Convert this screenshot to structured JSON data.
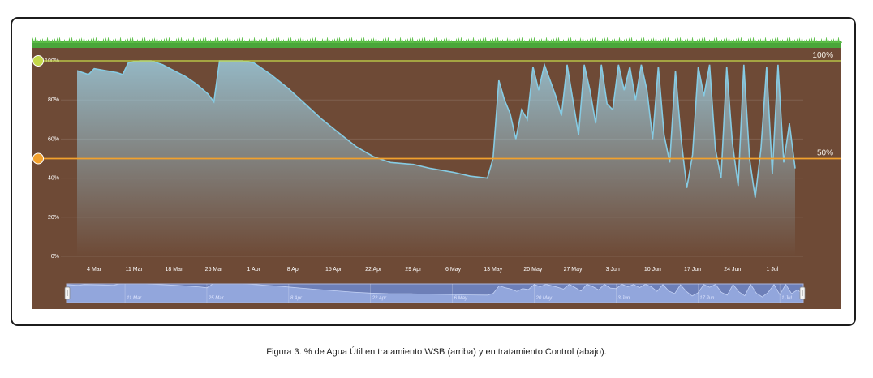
{
  "caption": "Figura 3. % de Agua Útil en tratamiento WSB (arriba) y en tratamiento Control (abajo).",
  "colors": {
    "soil": "#6e4a36",
    "grass": "#4aa63a",
    "series_line": "#86cbe3",
    "upper_line": "#c5d94a",
    "lower_line": "#f2a12d",
    "navigator_bg": "#6d7fb8",
    "navigator_fill": "#9fb3e8"
  },
  "icons": {
    "upper_handle": "circle-handle-icon",
    "lower_handle": "circle-handle-icon",
    "nav_left": "grip-handle-icon",
    "nav_right": "grip-handle-icon"
  },
  "chart_data": {
    "type": "area",
    "title": "",
    "xlabel": "",
    "ylabel": "",
    "ylim": [
      0,
      100
    ],
    "grid": true,
    "y_ticks": [
      "0%",
      "20%",
      "40%",
      "60%",
      "80%",
      "100%"
    ],
    "x_range": [
      "2017-03-01",
      "2017-07-05"
    ],
    "x_ticks": [
      {
        "date": "2017-03-04",
        "label": "4 Mar"
      },
      {
        "date": "2017-03-11",
        "label": "11 Mar"
      },
      {
        "date": "2017-03-18",
        "label": "18 Mar"
      },
      {
        "date": "2017-03-25",
        "label": "25 Mar"
      },
      {
        "date": "2017-04-01",
        "label": "1 Apr"
      },
      {
        "date": "2017-04-08",
        "label": "8 Apr"
      },
      {
        "date": "2017-04-15",
        "label": "15 Apr"
      },
      {
        "date": "2017-04-22",
        "label": "22 Apr"
      },
      {
        "date": "2017-04-29",
        "label": "29 Apr"
      },
      {
        "date": "2017-05-06",
        "label": "6 May"
      },
      {
        "date": "2017-05-13",
        "label": "13 May"
      },
      {
        "date": "2017-05-20",
        "label": "20 May"
      },
      {
        "date": "2017-05-27",
        "label": "27 May"
      },
      {
        "date": "2017-06-03",
        "label": "3 Jun"
      },
      {
        "date": "2017-06-10",
        "label": "10 Jun"
      },
      {
        "date": "2017-06-17",
        "label": "17 Jun"
      },
      {
        "date": "2017-06-24",
        "label": "24 Jun"
      },
      {
        "date": "2017-07-01",
        "label": "1 Jul"
      }
    ],
    "reference_lines": [
      {
        "value": 100,
        "label": "100%"
      },
      {
        "value": 50,
        "label": "50%"
      }
    ],
    "navigator_labels": [
      "11 Mar",
      "25 Mar",
      "8 Apr",
      "22 Apr",
      "6 May",
      "20 May",
      "3 Jun",
      "17 Jun",
      "1 Jul"
    ],
    "series": [
      {
        "points": [
          [
            "2017-03-01",
            95
          ],
          [
            "2017-03-03",
            93
          ],
          [
            "2017-03-04",
            96
          ],
          [
            "2017-03-06",
            95
          ],
          [
            "2017-03-08",
            94
          ],
          [
            "2017-03-09",
            93
          ],
          [
            "2017-03-10",
            99
          ],
          [
            "2017-03-12",
            100
          ],
          [
            "2017-03-14",
            100
          ],
          [
            "2017-03-16",
            98
          ],
          [
            "2017-03-18",
            95
          ],
          [
            "2017-03-20",
            92
          ],
          [
            "2017-03-22",
            88
          ],
          [
            "2017-03-24",
            83
          ],
          [
            "2017-03-25",
            79
          ],
          [
            "2017-03-26",
            100
          ],
          [
            "2017-03-30",
            100
          ],
          [
            "2017-04-01",
            99
          ],
          [
            "2017-04-04",
            93
          ],
          [
            "2017-04-07",
            86
          ],
          [
            "2017-04-10",
            78
          ],
          [
            "2017-04-13",
            70
          ],
          [
            "2017-04-16",
            63
          ],
          [
            "2017-04-19",
            56
          ],
          [
            "2017-04-22",
            51
          ],
          [
            "2017-04-25",
            48
          ],
          [
            "2017-04-29",
            47
          ],
          [
            "2017-05-02",
            45
          ],
          [
            "2017-05-06",
            43
          ],
          [
            "2017-05-09",
            41
          ],
          [
            "2017-05-12",
            40
          ],
          [
            "2017-05-13",
            50
          ],
          [
            "2017-05-14",
            90
          ],
          [
            "2017-05-15",
            80
          ],
          [
            "2017-05-16",
            73
          ],
          [
            "2017-05-17",
            60
          ],
          [
            "2017-05-18",
            75
          ],
          [
            "2017-05-19",
            70
          ],
          [
            "2017-05-20",
            97
          ],
          [
            "2017-05-21",
            85
          ],
          [
            "2017-05-22",
            98
          ],
          [
            "2017-05-23",
            90
          ],
          [
            "2017-05-24",
            82
          ],
          [
            "2017-05-25",
            72
          ],
          [
            "2017-05-26",
            98
          ],
          [
            "2017-05-27",
            80
          ],
          [
            "2017-05-28",
            62
          ],
          [
            "2017-05-29",
            98
          ],
          [
            "2017-05-30",
            85
          ],
          [
            "2017-05-31",
            68
          ],
          [
            "2017-06-01",
            98
          ],
          [
            "2017-06-02",
            78
          ],
          [
            "2017-06-03",
            75
          ],
          [
            "2017-06-04",
            98
          ],
          [
            "2017-06-05",
            85
          ],
          [
            "2017-06-06",
            97
          ],
          [
            "2017-06-07",
            80
          ],
          [
            "2017-06-08",
            98
          ],
          [
            "2017-06-09",
            85
          ],
          [
            "2017-06-10",
            60
          ],
          [
            "2017-06-11",
            97
          ],
          [
            "2017-06-12",
            62
          ],
          [
            "2017-06-13",
            48
          ],
          [
            "2017-06-14",
            95
          ],
          [
            "2017-06-15",
            60
          ],
          [
            "2017-06-16",
            35
          ],
          [
            "2017-06-17",
            52
          ],
          [
            "2017-06-18",
            97
          ],
          [
            "2017-06-19",
            82
          ],
          [
            "2017-06-20",
            98
          ],
          [
            "2017-06-21",
            55
          ],
          [
            "2017-06-22",
            40
          ],
          [
            "2017-06-23",
            97
          ],
          [
            "2017-06-24",
            58
          ],
          [
            "2017-06-25",
            36
          ],
          [
            "2017-06-26",
            98
          ],
          [
            "2017-06-27",
            50
          ],
          [
            "2017-06-28",
            30
          ],
          [
            "2017-06-29",
            55
          ],
          [
            "2017-06-30",
            97
          ],
          [
            "2017-07-01",
            42
          ],
          [
            "2017-07-02",
            98
          ],
          [
            "2017-07-03",
            48
          ],
          [
            "2017-07-04",
            68
          ],
          [
            "2017-07-05",
            45
          ]
        ]
      }
    ]
  }
}
